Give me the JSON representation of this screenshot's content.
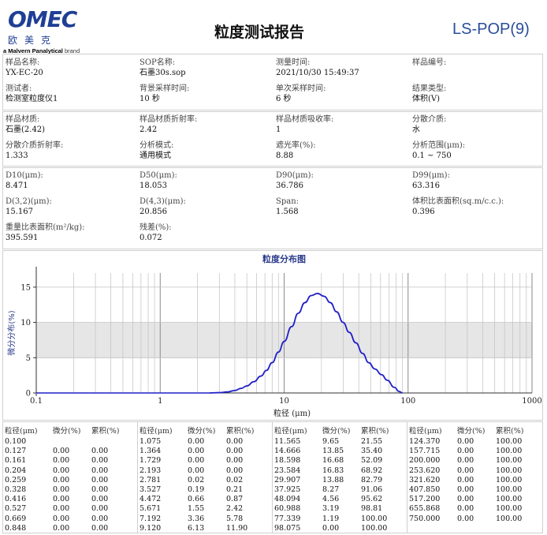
{
  "header": {
    "logo_text": "OMEC",
    "logo_cn": "欧美克",
    "logo_brand_bold": "a Malvern Panalytical",
    "logo_brand_rest": " brand",
    "title": "粒度测试报告",
    "doc_id": "LS-POP(9)"
  },
  "info": [
    {
      "label": "样品名称:",
      "value": "YX-EC-20"
    },
    {
      "label": "SOP名称:",
      "value": "石墨30s.sop"
    },
    {
      "label": "测量时间:",
      "value": "2021/10/30 15:49:37"
    },
    {
      "label": "样品编号:",
      "value": ""
    },
    {
      "label": "测试者:",
      "value": "检测室粒度仪1"
    },
    {
      "label": "背景采样时间:",
      "value": "10 秒"
    },
    {
      "label": "单次采样时间:",
      "value": "6 秒"
    },
    {
      "label": "结果类型:",
      "value": "体积(V)"
    }
  ],
  "material": [
    {
      "label": "样品材质:",
      "value": "石墨(2.42)"
    },
    {
      "label": "样品材质折射率:",
      "value": "2.42"
    },
    {
      "label": "样品材质吸收率:",
      "value": "1"
    },
    {
      "label": "分散介质:",
      "value": "水"
    },
    {
      "label": "分散介质折射率:",
      "value": "1.333"
    },
    {
      "label": "分析模式:",
      "value": "通用模式"
    },
    {
      "label": "遮光率(%):",
      "value": "8.88"
    },
    {
      "label": "分析范围(μm):",
      "value": "0.1 ~ 750"
    }
  ],
  "results": [
    {
      "label": "D10(μm):",
      "value": "8.471"
    },
    {
      "label": "D50(μm):",
      "value": "18.053"
    },
    {
      "label": "D90(μm):",
      "value": "36.786"
    },
    {
      "label": "D99(μm):",
      "value": "63.316"
    },
    {
      "label": "D(3,2)(μm):",
      "value": "15.167"
    },
    {
      "label": "D(4,3)(μm):",
      "value": "20.856"
    },
    {
      "label": "Span:",
      "value": "1.568"
    },
    {
      "label": "体积比表面积(sq.m/c.c.):",
      "value": "0.396"
    },
    {
      "label": "重量比表面积(m²/kg):",
      "value": "395.591"
    },
    {
      "label": "残差(%):",
      "value": "0.072"
    }
  ],
  "chart_data": {
    "type": "line",
    "title": "粒度分布图",
    "xlabel": "粒径 (μm)",
    "ylabel": "微分分布(%)",
    "x_scale": "log",
    "xlim": [
      0.1,
      1000
    ],
    "ylim": [
      0,
      17
    ],
    "x_ticks": [
      "0.1",
      "1",
      "10",
      "100",
      "1000"
    ],
    "y_ticks": [
      "0",
      "5",
      "10",
      "15"
    ],
    "grid": true,
    "line_color": "#2020c8",
    "band_color": "#e6e6e6",
    "series": [
      {
        "x": [
          2.5,
          3.0,
          3.5,
          4.0,
          4.5,
          5.0,
          5.7,
          6.5,
          7.2,
          8.0,
          9.0,
          10.0,
          11.5,
          13.0,
          14.7,
          16.5,
          18.6,
          21.0,
          23.6,
          26.5,
          29.9,
          33.5,
          37.9,
          43.0,
          48.1,
          54.0,
          61.0,
          68.0,
          77.3,
          85.0,
          90.0
        ],
        "y": [
          0.0,
          0.05,
          0.15,
          0.35,
          0.65,
          1.0,
          1.6,
          2.4,
          3.2,
          4.3,
          5.8,
          7.3,
          9.4,
          11.3,
          12.8,
          13.8,
          14.1,
          13.7,
          12.8,
          11.5,
          10.0,
          8.6,
          7.1,
          5.6,
          4.3,
          3.4,
          2.6,
          1.8,
          0.8,
          0.2,
          0.0
        ]
      }
    ]
  },
  "table": {
    "headers": [
      "粒径(μm)",
      "微分(%)",
      "累积(%)"
    ],
    "groups": [
      [
        [
          "0.100",
          "",
          ""
        ],
        [
          "0.127",
          "0.00",
          "0.00"
        ],
        [
          "0.161",
          "0.00",
          "0.00"
        ],
        [
          "0.204",
          "0.00",
          "0.00"
        ],
        [
          "0.259",
          "0.00",
          "0.00"
        ],
        [
          "0.328",
          "0.00",
          "0.00"
        ],
        [
          "0.416",
          "0.00",
          "0.00"
        ],
        [
          "0.527",
          "0.00",
          "0.00"
        ],
        [
          "0.669",
          "0.00",
          "0.00"
        ],
        [
          "0.848",
          "0.00",
          "0.00"
        ]
      ],
      [
        [
          "1.075",
          "0.00",
          "0.00"
        ],
        [
          "1.364",
          "0.00",
          "0.00"
        ],
        [
          "1.729",
          "0.00",
          "0.00"
        ],
        [
          "2.193",
          "0.00",
          "0.00"
        ],
        [
          "2.781",
          "0.02",
          "0.02"
        ],
        [
          "3.527",
          "0.19",
          "0.21"
        ],
        [
          "4.472",
          "0.66",
          "0.87"
        ],
        [
          "5.671",
          "1.55",
          "2.42"
        ],
        [
          "7.192",
          "3.36",
          "5.78"
        ],
        [
          "9.120",
          "6.13",
          "11.90"
        ]
      ],
      [
        [
          "11.565",
          "9.65",
          "21.55"
        ],
        [
          "14.666",
          "13.85",
          "35.40"
        ],
        [
          "18.598",
          "16.68",
          "52.09"
        ],
        [
          "23.584",
          "16.83",
          "68.92"
        ],
        [
          "29.907",
          "13.88",
          "82.79"
        ],
        [
          "37.925",
          "8.27",
          "91.06"
        ],
        [
          "48.094",
          "4.56",
          "95.62"
        ],
        [
          "60.988",
          "3.19",
          "98.81"
        ],
        [
          "77.339",
          "1.19",
          "100.00"
        ],
        [
          "98.075",
          "0.00",
          "100.00"
        ]
      ],
      [
        [
          "124.370",
          "0.00",
          "100.00"
        ],
        [
          "157.715",
          "0.00",
          "100.00"
        ],
        [
          "200.000",
          "0.00",
          "100.00"
        ],
        [
          "253.620",
          "0.00",
          "100.00"
        ],
        [
          "321.620",
          "0.00",
          "100.00"
        ],
        [
          "407.850",
          "0.00",
          "100.00"
        ],
        [
          "517.200",
          "0.00",
          "100.00"
        ],
        [
          "655.868",
          "0.00",
          "100.00"
        ],
        [
          "750.000",
          "0.00",
          "100.00"
        ]
      ]
    ]
  }
}
